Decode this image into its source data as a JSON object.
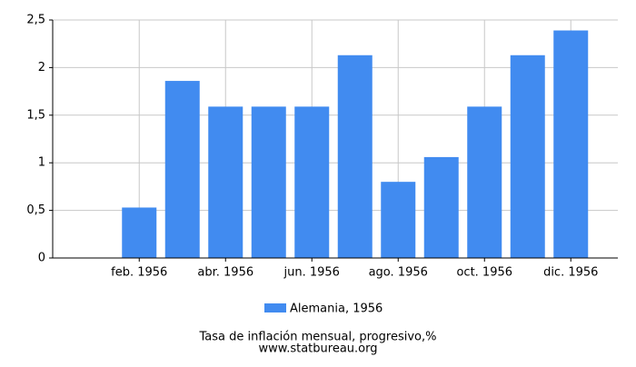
{
  "chart_data": {
    "type": "bar",
    "title": "Tasa de inflación mensual, progresivo,%",
    "subtitle": "www.statbureau.org",
    "categories": [
      null,
      "feb. 1956",
      null,
      "abr. 1956",
      null,
      "jun. 1956",
      null,
      "ago. 1956",
      null,
      "oct. 1956",
      null,
      "dic. 1956"
    ],
    "series": [
      {
        "name": "Alemania, 1956",
        "color": "#418bf0",
        "values": [
          0,
          0.53,
          1.86,
          1.59,
          1.59,
          1.59,
          2.13,
          0.8,
          1.06,
          1.59,
          2.13,
          2.39
        ]
      }
    ],
    "ylim": [
      0,
      2.5
    ],
    "yticks": [
      0,
      {
        "value": 0.5,
        "label": "0,5"
      },
      1,
      {
        "value": 1.5,
        "label": "1,5"
      },
      2,
      {
        "value": 2.5,
        "label": "2,5"
      }
    ],
    "grid": true,
    "legend": "bottom"
  }
}
